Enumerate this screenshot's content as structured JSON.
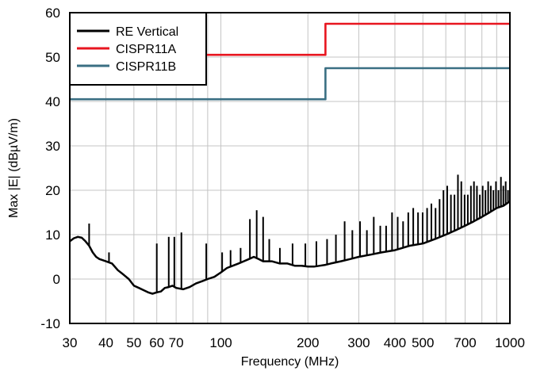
{
  "chart_data": {
    "type": "line",
    "xlabel": "Frequency (MHz)",
    "ylabel": "Max |E| (dBµV/m)",
    "x_scale": "log",
    "xlim": [
      30,
      1000
    ],
    "ylim": [
      -10,
      60
    ],
    "grid": true,
    "legend_position": "top-left",
    "x_ticks": [
      30,
      40,
      50,
      60,
      70,
      100,
      200,
      300,
      400,
      500,
      700,
      1000
    ],
    "x_tick_labels": [
      "30",
      "40",
      "50",
      "60",
      "70",
      "100",
      "200",
      "300",
      "400",
      "500",
      "700",
      "1000"
    ],
    "y_ticks": [
      -10,
      0,
      10,
      20,
      30,
      40,
      50,
      60
    ],
    "y_tick_labels": [
      "-10",
      "0",
      "10",
      "20",
      "30",
      "40",
      "50",
      "60"
    ],
    "series": [
      {
        "name": "RE Vertical",
        "color": "#000000",
        "x": [
          30,
          31,
          32,
          33,
          34,
          35,
          36,
          37,
          38,
          40,
          42,
          44,
          46,
          48,
          50,
          52,
          54,
          56,
          58,
          60,
          62,
          64,
          66,
          68,
          70,
          74,
          78,
          82,
          86,
          90,
          95,
          100,
          105,
          110,
          115,
          120,
          125,
          130,
          135,
          140,
          150,
          160,
          170,
          180,
          190,
          200,
          210,
          220,
          230,
          240,
          260,
          280,
          300,
          330,
          360,
          400,
          450,
          500,
          550,
          600,
          650,
          700,
          750,
          800,
          850,
          900,
          950,
          1000
        ],
        "y": [
          8.5,
          9.2,
          9.5,
          9.3,
          8.5,
          7.5,
          6.0,
          5.0,
          4.5,
          4.0,
          3.5,
          2.0,
          1.0,
          0.0,
          -1.5,
          -2.0,
          -2.5,
          -3.0,
          -3.3,
          -3.0,
          -2.8,
          -2.0,
          -1.8,
          -1.5,
          -2.0,
          -2.3,
          -1.8,
          -1.0,
          -0.5,
          0.0,
          0.5,
          1.5,
          2.5,
          3.0,
          3.5,
          4.0,
          4.5,
          5.0,
          4.5,
          4.0,
          4.0,
          3.5,
          3.5,
          3.0,
          3.0,
          2.8,
          2.8,
          3.0,
          3.2,
          3.5,
          4.0,
          4.5,
          5.0,
          5.5,
          6.0,
          6.5,
          7.5,
          8.0,
          9.0,
          10.0,
          11.0,
          12.0,
          13.0,
          14.0,
          15.0,
          16.0,
          16.5,
          17.5
        ]
      },
      {
        "name": "CISPR11A",
        "color": "#e8151f",
        "x": [
          30,
          230,
          230,
          1000
        ],
        "y": [
          50.5,
          50.5,
          57.5,
          57.5
        ]
      },
      {
        "name": "CISPR11B",
        "color": "#3a6f83",
        "x": [
          30,
          230,
          230,
          1000
        ],
        "y": [
          40.5,
          40.5,
          47.5,
          47.5
        ]
      }
    ],
    "spikes": {
      "series": "RE Vertical",
      "x": [
        35,
        41,
        60,
        66,
        69,
        73,
        89,
        101,
        108,
        117,
        126,
        133,
        140,
        147,
        160,
        177,
        196,
        214,
        233,
        250,
        268,
        285,
        303,
        320,
        338,
        356,
        373,
        391,
        409,
        427,
        445,
        463,
        481,
        499,
        517,
        535,
        553,
        571,
        589,
        607,
        625,
        643,
        661,
        679,
        697,
        715,
        733,
        751,
        769,
        787,
        805,
        823,
        841,
        859,
        877,
        895,
        913,
        931,
        949,
        967,
        985
      ],
      "y": [
        12.5,
        6.0,
        8.0,
        9.5,
        9.5,
        10.5,
        8.0,
        6.0,
        6.5,
        7.0,
        13.5,
        15.5,
        14.0,
        9.0,
        7.0,
        8.0,
        8.0,
        8.5,
        9.0,
        10.0,
        13.0,
        11.0,
        13.0,
        11.0,
        14.0,
        12.0,
        12.0,
        15.0,
        14.0,
        13.0,
        15.0,
        16.0,
        15.0,
        15.0,
        16.0,
        17.0,
        16.0,
        18.0,
        20.0,
        21.0,
        19.0,
        19.0,
        23.5,
        22.0,
        19.0,
        19.0,
        21.0,
        22.0,
        21.0,
        19.0,
        21.0,
        20.0,
        22.0,
        21.0,
        20.0,
        22.0,
        20.0,
        23.0,
        21.0,
        22.0,
        20.0
      ]
    }
  }
}
